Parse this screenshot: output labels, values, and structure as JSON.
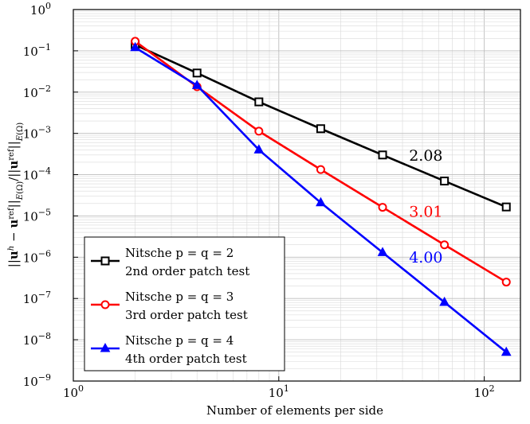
{
  "chart_data": {
    "type": "line",
    "title": "",
    "xlabel": "Number of elements per side",
    "ylabel": "||u^h − u^ref||_{E(Ω)}/||u^ref||_{E(Ω)}",
    "xscale": "log",
    "yscale": "log",
    "xlim": [
      1,
      150
    ],
    "ylim": [
      1e-09,
      1
    ],
    "x_ticks": [
      {
        "base": "10",
        "exp": "0"
      },
      {
        "base": "10",
        "exp": "1"
      },
      {
        "base": "10",
        "exp": "2"
      }
    ],
    "y_ticks": [
      {
        "base": "10",
        "exp": "0"
      },
      {
        "base": "10",
        "exp": "−1"
      },
      {
        "base": "10",
        "exp": "−2"
      },
      {
        "base": "10",
        "exp": "−3"
      },
      {
        "base": "10",
        "exp": "−4"
      },
      {
        "base": "10",
        "exp": "−5"
      },
      {
        "base": "10",
        "exp": "−6"
      },
      {
        "base": "10",
        "exp": "−7"
      },
      {
        "base": "10",
        "exp": "−8"
      },
      {
        "base": "10",
        "exp": "−9"
      }
    ],
    "grid": true,
    "legend_position": "bottom-left",
    "series": [
      {
        "name": "Nitsche p = q = 2",
        "name_line2": "2nd order patch test",
        "color": "#000000",
        "marker": "square",
        "x": [
          2,
          4,
          8,
          16,
          32,
          64,
          128
        ],
        "y": [
          0.14,
          0.029,
          0.0058,
          0.0013,
          0.0003,
          7e-05,
          1.65e-05
        ]
      },
      {
        "name": "Nitsche p = q = 3",
        "name_line2": "3rd order patch test",
        "color": "#ff0000",
        "marker": "circle",
        "x": [
          2,
          4,
          8,
          16,
          32,
          64,
          128
        ],
        "y": [
          0.17,
          0.0135,
          0.00113,
          0.000133,
          1.62e-05,
          2e-06,
          2.5e-07
        ]
      },
      {
        "name": "Nitsche p = q = 4",
        "name_line2": "4th order patch test",
        "color": "#0000ff",
        "marker": "triangle",
        "x": [
          2,
          4,
          8,
          16,
          32,
          64,
          128
        ],
        "y": [
          0.12,
          0.0145,
          0.0004,
          2.1e-05,
          1.3e-06,
          8.1e-08,
          5e-09
        ]
      }
    ],
    "annotations": [
      {
        "text": "2.08",
        "x": 52,
        "y": 0.00022,
        "color": "#000000"
      },
      {
        "text": "3.01",
        "x": 52,
        "y": 9.5e-06,
        "color": "#ff0000"
      },
      {
        "text": "4.00",
        "x": 52,
        "y": 7.5e-07,
        "color": "#0000ff"
      }
    ]
  }
}
